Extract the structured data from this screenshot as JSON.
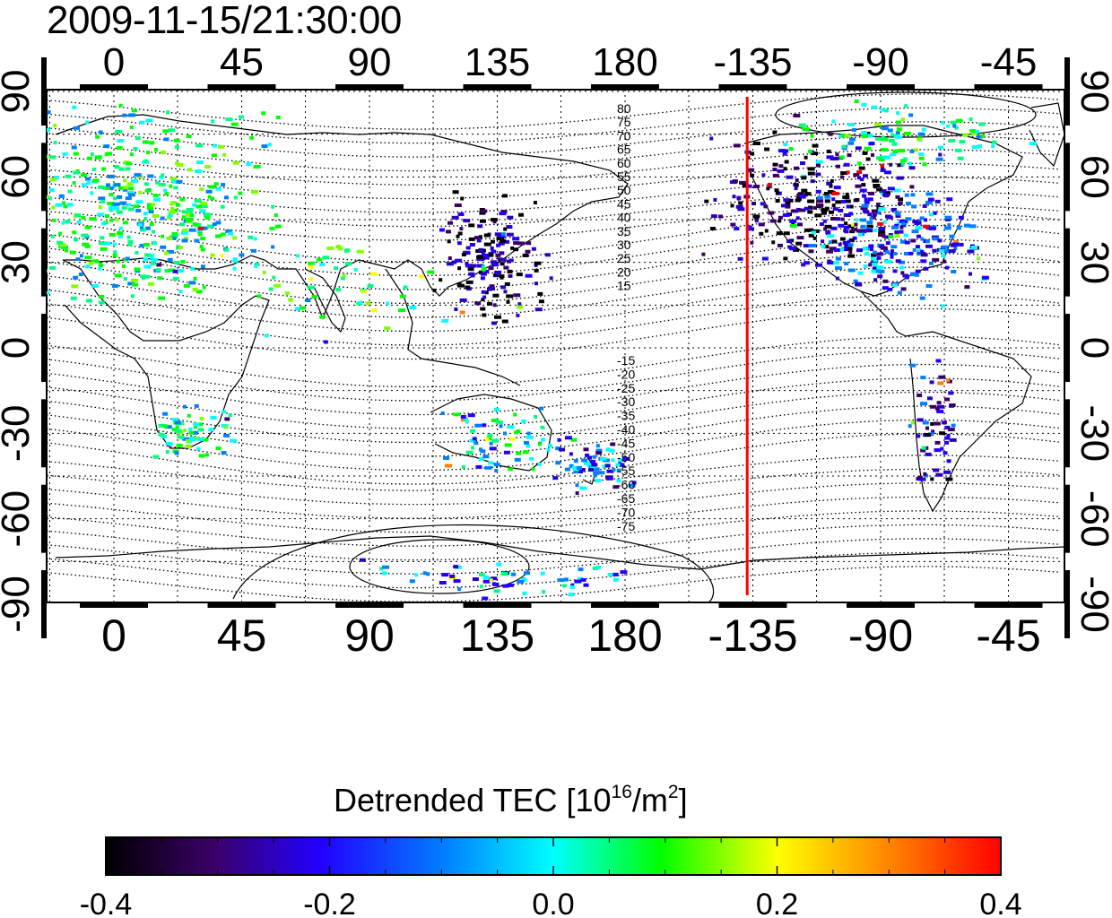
{
  "title": "2009-11-15/21:30:00",
  "map": {
    "lon_tick_labels": [
      "0",
      "45",
      "90",
      "135",
      "180",
      "-135",
      "-90",
      "-45"
    ],
    "lat_tick_labels": [
      "90",
      "60",
      "30",
      "0",
      "-30",
      "-60",
      "-90"
    ],
    "contour_labels_north": [
      "80",
      "75",
      "70",
      "65",
      "60",
      "55",
      "50",
      "45",
      "40",
      "35",
      "30",
      "25",
      "20",
      "15"
    ],
    "contour_labels_south": [
      "-15",
      "-20",
      "-25",
      "-30",
      "-35",
      "-40",
      "-45",
      "-50",
      "-55",
      "-60",
      "-65",
      "-70",
      "-75"
    ],
    "red_line_longitude": -137,
    "red_line_color": "#ff0000"
  },
  "colorbar": {
    "label_text": "Detrended TEC  [10",
    "label_exp": "16",
    "label_unit": "/m",
    "label_exp2": "2",
    "label_close": "]",
    "tick_labels": [
      "-0.4",
      "-0.2",
      "0.0",
      "0.2",
      "0.4"
    ],
    "range": [
      -0.4,
      0.4
    ],
    "colors": [
      "#000000",
      "#4b0082",
      "#0000ff",
      "#00ffff",
      "#00ff00",
      "#ffff00",
      "#ff0000"
    ]
  }
}
